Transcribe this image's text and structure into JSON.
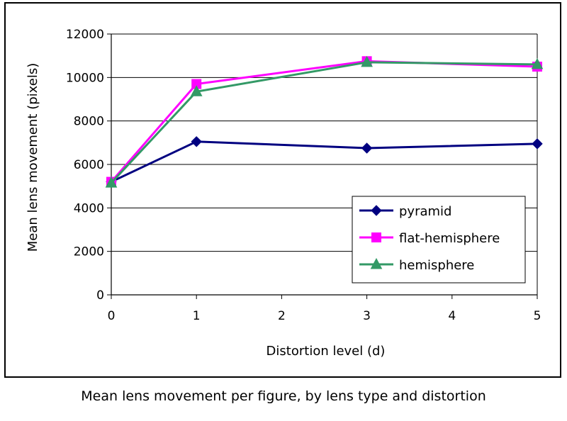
{
  "caption": "Mean lens movement per figure, by lens type and distortion",
  "chart_data": {
    "type": "line",
    "title": "",
    "xlabel": "Distortion level (d)",
    "ylabel": "Mean lens movement (pixels)",
    "xlim": [
      0,
      5
    ],
    "ylim": [
      0,
      12000
    ],
    "xticks": [
      0,
      1,
      2,
      3,
      4,
      5
    ],
    "yticks": [
      0,
      2000,
      4000,
      6000,
      8000,
      10000,
      12000
    ],
    "grid": "horizontal",
    "legend_position": "lower-right",
    "series": [
      {
        "name": "pyramid",
        "color": "#000080",
        "marker": "diamond",
        "x": [
          0,
          1,
          3,
          5
        ],
        "y": [
          5200,
          7050,
          6750,
          6950
        ]
      },
      {
        "name": "flat-hemisphere",
        "color": "#ff00ff",
        "marker": "square",
        "x": [
          0,
          1,
          3,
          5
        ],
        "y": [
          5200,
          9700,
          10750,
          10500
        ]
      },
      {
        "name": "hemisphere",
        "color": "#339966",
        "marker": "triangle",
        "x": [
          0,
          1,
          3,
          5
        ],
        "y": [
          5150,
          9350,
          10700,
          10600
        ]
      }
    ]
  }
}
